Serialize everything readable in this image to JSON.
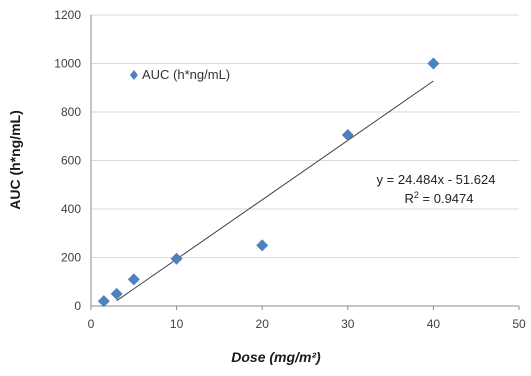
{
  "chart_data": {
    "type": "scatter",
    "xlabel": "Dose (mg/m²)",
    "ylabel": "AUC (h*ng/mL)",
    "xlim": [
      0,
      50
    ],
    "ylim": [
      0,
      1200
    ],
    "x_ticks": [
      "0",
      "10",
      "20",
      "30",
      "40",
      "50"
    ],
    "y_ticks": [
      "0",
      "200",
      "400",
      "600",
      "800",
      "1000",
      "1200"
    ],
    "grid": "horizontal",
    "legend_position": "top-left",
    "series": [
      {
        "name": "AUC (h*ng/mL)",
        "marker": "diamond",
        "color": "#4f81bd",
        "points": [
          {
            "x": 1.5,
            "y": 20
          },
          {
            "x": 3,
            "y": 50
          },
          {
            "x": 5,
            "y": 110
          },
          {
            "x": 10,
            "y": 195
          },
          {
            "x": 20,
            "y": 250
          },
          {
            "x": 30,
            "y": 705
          },
          {
            "x": 40,
            "y": 1000
          }
        ]
      }
    ],
    "trendline": {
      "type": "linear",
      "slope": 24.484,
      "intercept": -51.624,
      "x_range": [
        3,
        40
      ],
      "color": "#404040",
      "equation": "y = 24.484x - 51.624",
      "r2_prefix": "R",
      "r2_sup": "2",
      "r2_value": " = 0.9474"
    }
  }
}
